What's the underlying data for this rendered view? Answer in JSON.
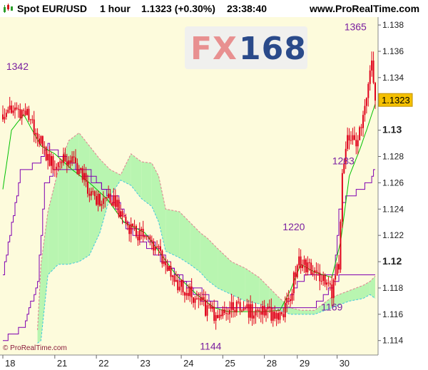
{
  "header": {
    "instrument": "Spot EUR/USD",
    "timeframe": "1 hour",
    "last_and_change": "1.1323 (+0.30%)",
    "time": "23:38:40",
    "site": "www.ProRealTime.com"
  },
  "watermark": {
    "part1": "FX",
    "part2": "168"
  },
  "copyright": "© ProRealTime.com",
  "colors": {
    "plot_background": "#fdfbdc",
    "candle": "#e0001a",
    "tenkan_line": "#00c000",
    "kijun_line": "#8000b0",
    "chikou_line": "#8000b0",
    "cloud_bullish": "#b8f5b0",
    "cloud_bearish": "#f8c8dc",
    "price_tag": "#f4c000",
    "annotation": "#7a1fa0"
  },
  "chart_data": {
    "type": "candlestick",
    "title": "Spot EUR/USD 1 hour",
    "last_price_label": "1.1323",
    "x_tick_labels": [
      "18",
      "21",
      "22",
      "23",
      "24",
      "25",
      "28",
      "29",
      "30"
    ],
    "x_tick_index": [
      0,
      30,
      54,
      78,
      103,
      127,
      151,
      170,
      193
    ],
    "y_ticks": [
      {
        "label": "1.138",
        "value": 1.138,
        "bold": false
      },
      {
        "label": "1.136",
        "value": 1.136,
        "bold": false
      },
      {
        "label": "1.134",
        "value": 1.134,
        "bold": false
      },
      {
        "label": "1.13",
        "value": 1.13,
        "bold": true
      },
      {
        "label": "1.128",
        "value": 1.128,
        "bold": false
      },
      {
        "label": "1.126",
        "value": 1.126,
        "bold": false
      },
      {
        "label": "1.124",
        "value": 1.124,
        "bold": false
      },
      {
        "label": "1.122",
        "value": 1.122,
        "bold": false
      },
      {
        "label": "1.12",
        "value": 1.12,
        "bold": true
      },
      {
        "label": "1.118",
        "value": 1.118,
        "bold": false
      },
      {
        "label": "1.116",
        "value": 1.116,
        "bold": false
      },
      {
        "label": "1.114",
        "value": 1.114,
        "bold": false
      }
    ],
    "ylim": [
      1.1129,
      1.1386
    ],
    "bar_count": 216,
    "price_path": [
      [
        0,
        1.1312
      ],
      [
        6,
        1.1318
      ],
      [
        14,
        1.1312
      ],
      [
        20,
        1.1298
      ],
      [
        24,
        1.1282
      ],
      [
        30,
        1.1272
      ],
      [
        38,
        1.128
      ],
      [
        44,
        1.127
      ],
      [
        50,
        1.1255
      ],
      [
        56,
        1.1245
      ],
      [
        62,
        1.125
      ],
      [
        68,
        1.1238
      ],
      [
        72,
        1.1228
      ],
      [
        80,
        1.122
      ],
      [
        88,
        1.1212
      ],
      [
        96,
        1.1195
      ],
      [
        100,
        1.1185
      ],
      [
        106,
        1.1178
      ],
      [
        112,
        1.1172
      ],
      [
        118,
        1.1163
      ],
      [
        124,
        1.116
      ],
      [
        130,
        1.1165
      ],
      [
        138,
        1.1163
      ],
      [
        144,
        1.1162
      ],
      [
        150,
        1.1165
      ],
      [
        156,
        1.116
      ],
      [
        162,
        1.1162
      ],
      [
        166,
        1.1175
      ],
      [
        170,
        1.12
      ],
      [
        174,
        1.1198
      ],
      [
        180,
        1.119
      ],
      [
        186,
        1.1186
      ],
      [
        190,
        1.1178
      ],
      [
        194,
        1.1198
      ],
      [
        196,
        1.127
      ],
      [
        199,
        1.1295
      ],
      [
        203,
        1.129
      ],
      [
        207,
        1.13
      ],
      [
        210,
        1.132
      ],
      [
        213,
        1.135
      ],
      [
        215,
        1.1323
      ]
    ],
    "tenkan_path": [
      [
        0,
        1.1255
      ],
      [
        5,
        1.13
      ],
      [
        12,
        1.1312
      ],
      [
        22,
        1.1288
      ],
      [
        30,
        1.1282
      ],
      [
        40,
        1.127
      ],
      [
        50,
        1.126
      ],
      [
        60,
        1.1248
      ],
      [
        70,
        1.123
      ],
      [
        82,
        1.1222
      ],
      [
        90,
        1.1208
      ],
      [
        100,
        1.119
      ],
      [
        112,
        1.1175
      ],
      [
        122,
        1.1165
      ],
      [
        130,
        1.1162
      ],
      [
        140,
        1.1162
      ],
      [
        150,
        1.1162
      ],
      [
        160,
        1.1163
      ],
      [
        166,
        1.1178
      ],
      [
        172,
        1.1198
      ],
      [
        180,
        1.1192
      ],
      [
        190,
        1.1188
      ],
      [
        195,
        1.1215
      ],
      [
        200,
        1.1265
      ],
      [
        206,
        1.1285
      ],
      [
        210,
        1.13
      ],
      [
        215,
        1.132
      ]
    ],
    "kijun_path": [
      [
        0,
        1.119
      ],
      [
        10,
        1.1268
      ],
      [
        20,
        1.1275
      ],
      [
        26,
        1.1288
      ],
      [
        34,
        1.128
      ],
      [
        48,
        1.1265
      ],
      [
        56,
        1.1258
      ],
      [
        66,
        1.1248
      ],
      [
        72,
        1.1228
      ],
      [
        82,
        1.122
      ],
      [
        92,
        1.1205
      ],
      [
        100,
        1.119
      ],
      [
        106,
        1.1182
      ],
      [
        116,
        1.117
      ],
      [
        124,
        1.1164
      ],
      [
        136,
        1.1163
      ],
      [
        150,
        1.1163
      ],
      [
        162,
        1.1163
      ],
      [
        168,
        1.118
      ],
      [
        176,
        1.119
      ],
      [
        186,
        1.1188
      ],
      [
        191,
        1.1188
      ],
      [
        194,
        1.1238
      ],
      [
        198,
        1.1248
      ],
      [
        206,
        1.1255
      ],
      [
        212,
        1.1262
      ],
      [
        215,
        1.1272
      ]
    ],
    "chikou_path": [
      [
        0,
        1.114
      ],
      [
        12,
        1.115
      ],
      [
        20,
        1.1185
      ],
      [
        24,
        1.1258
      ],
      [
        30,
        1.127
      ],
      [
        36,
        1.1268
      ],
      [
        42,
        1.1268
      ],
      [
        50,
        1.1268
      ],
      [
        54,
        1.1262
      ],
      [
        60,
        1.1252
      ],
      [
        66,
        1.124
      ],
      [
        70,
        1.1228
      ],
      [
        76,
        1.122
      ],
      [
        84,
        1.121
      ],
      [
        92,
        1.12
      ],
      [
        100,
        1.119
      ],
      [
        106,
        1.1185
      ],
      [
        114,
        1.1178
      ],
      [
        122,
        1.1168
      ],
      [
        132,
        1.1165
      ],
      [
        142,
        1.1165
      ],
      [
        152,
        1.1164
      ],
      [
        162,
        1.1163
      ],
      [
        172,
        1.1163
      ],
      [
        182,
        1.1168
      ],
      [
        194,
        1.1188
      ],
      [
        206,
        1.119
      ],
      [
        215,
        1.119
      ]
    ],
    "cloud_upper": [
      [
        20,
        1.1148
      ],
      [
        22,
        1.1198
      ],
      [
        26,
        1.1238
      ],
      [
        32,
        1.127
      ],
      [
        38,
        1.1292
      ],
      [
        44,
        1.1298
      ],
      [
        50,
        1.1288
      ],
      [
        56,
        1.1278
      ],
      [
        62,
        1.127
      ],
      [
        68,
        1.1266
      ],
      [
        74,
        1.1282
      ],
      [
        80,
        1.1276
      ],
      [
        86,
        1.1275
      ],
      [
        90,
        1.1265
      ],
      [
        94,
        1.124
      ],
      [
        102,
        1.1238
      ],
      [
        108,
        1.123
      ],
      [
        114,
        1.1222
      ],
      [
        118,
        1.1218
      ],
      [
        124,
        1.121
      ],
      [
        132,
        1.12
      ],
      [
        140,
        1.1195
      ],
      [
        148,
        1.1188
      ],
      [
        154,
        1.118
      ],
      [
        160,
        1.1172
      ],
      [
        166,
        1.1165
      ],
      [
        172,
        1.1163
      ],
      [
        180,
        1.1163
      ],
      [
        190,
        1.1173
      ],
      [
        200,
        1.1178
      ],
      [
        208,
        1.1182
      ],
      [
        212,
        1.1185
      ],
      [
        215,
        1.1189
      ]
    ],
    "cloud_lower": [
      [
        20,
        1.1138
      ],
      [
        22,
        1.114
      ],
      [
        26,
        1.119
      ],
      [
        32,
        1.1198
      ],
      [
        38,
        1.1198
      ],
      [
        44,
        1.12
      ],
      [
        50,
        1.1205
      ],
      [
        56,
        1.1222
      ],
      [
        62,
        1.125
      ],
      [
        68,
        1.1262
      ],
      [
        74,
        1.1258
      ],
      [
        80,
        1.1248
      ],
      [
        86,
        1.1242
      ],
      [
        90,
        1.123
      ],
      [
        94,
        1.1208
      ],
      [
        102,
        1.1203
      ],
      [
        108,
        1.1198
      ],
      [
        114,
        1.1192
      ],
      [
        118,
        1.1186
      ],
      [
        124,
        1.118
      ],
      [
        132,
        1.1175
      ],
      [
        140,
        1.117
      ],
      [
        148,
        1.1168
      ],
      [
        154,
        1.1165
      ],
      [
        160,
        1.1163
      ],
      [
        166,
        1.116
      ],
      [
        172,
        1.116
      ],
      [
        180,
        1.116
      ],
      [
        190,
        1.1165
      ],
      [
        200,
        1.117
      ],
      [
        208,
        1.1172
      ],
      [
        212,
        1.1175
      ],
      [
        215,
        1.1172
      ]
    ],
    "annotations": [
      {
        "text": "1342",
        "x": 2,
        "y": 1.1346,
        "anchor": "start"
      },
      {
        "text": "1365",
        "x": 210,
        "y": 1.1376,
        "anchor": "end"
      },
      {
        "text": "1283",
        "x": 203,
        "y": 1.1274,
        "anchor": "end"
      },
      {
        "text": "1220",
        "x": 168,
        "y": 1.1224,
        "anchor": "middle"
      },
      {
        "text": "1169",
        "x": 190,
        "y": 1.1163,
        "anchor": "middle"
      },
      {
        "text": "1144",
        "x": 120,
        "y": 1.1133,
        "anchor": "middle"
      }
    ]
  }
}
